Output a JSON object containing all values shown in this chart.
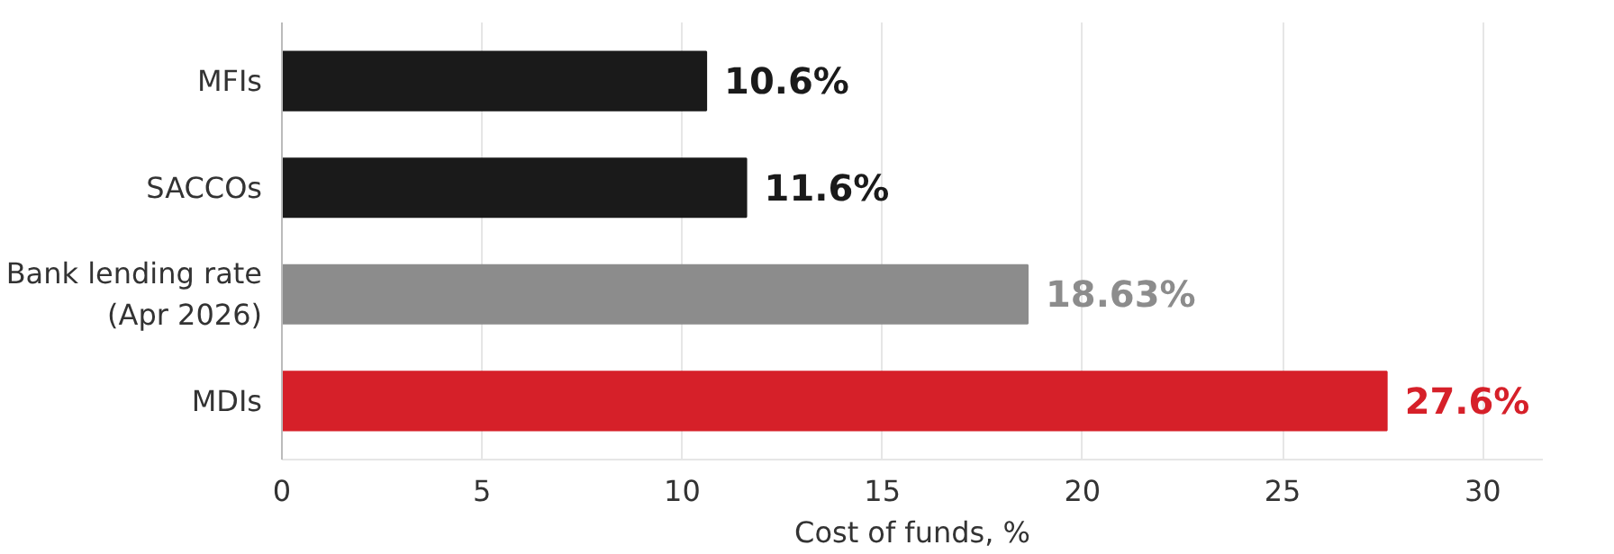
{
  "chart_data": {
    "type": "bar",
    "orientation": "horizontal",
    "categories": [
      "MFIs",
      "SACCOs",
      "Bank lending rate\n(Apr 2026)",
      "MDIs"
    ],
    "values": [
      10.6,
      11.6,
      18.63,
      27.6
    ],
    "colors": [
      "#1a1a1a",
      "#1a1a1a",
      "#8c8c8c",
      "#d62029"
    ],
    "value_labels": [
      "10.6%",
      "11.6%",
      "18.63%",
      "27.6%"
    ],
    "xlabel": "Cost of funds, %",
    "xlim": [
      0,
      31.5
    ],
    "xticks": [
      0,
      5,
      10,
      15,
      20,
      25,
      30
    ],
    "grid": "x"
  }
}
